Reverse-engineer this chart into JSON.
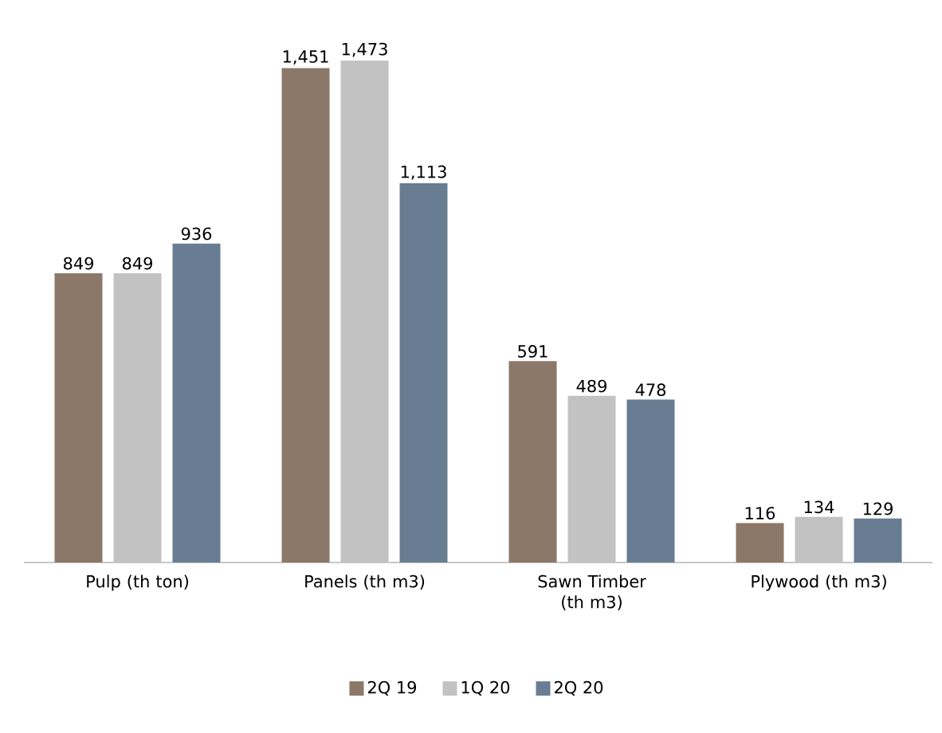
{
  "chart_data": {
    "type": "bar",
    "categories": [
      "Pulp (th ton)",
      "Panels (th m3)",
      "Sawn Timber (th m3)",
      "Plywood (th m3)"
    ],
    "legend": "bottom",
    "series": [
      {
        "name": "2Q 19",
        "color": "#8b7869",
        "values": [
          849,
          1451,
          591,
          116
        ],
        "value_labels": [
          "849",
          "1,451",
          "591",
          "116"
        ]
      },
      {
        "name": "1Q 20",
        "color": "#c2c2c2",
        "values": [
          849,
          1473,
          489,
          134
        ],
        "value_labels": [
          "849",
          "1,473",
          "489",
          "134"
        ]
      },
      {
        "name": "2Q 20",
        "color": "#687d92",
        "values": [
          936,
          1113,
          478,
          129
        ],
        "value_labels": [
          "936",
          "1,113",
          "478",
          "129"
        ]
      }
    ]
  }
}
